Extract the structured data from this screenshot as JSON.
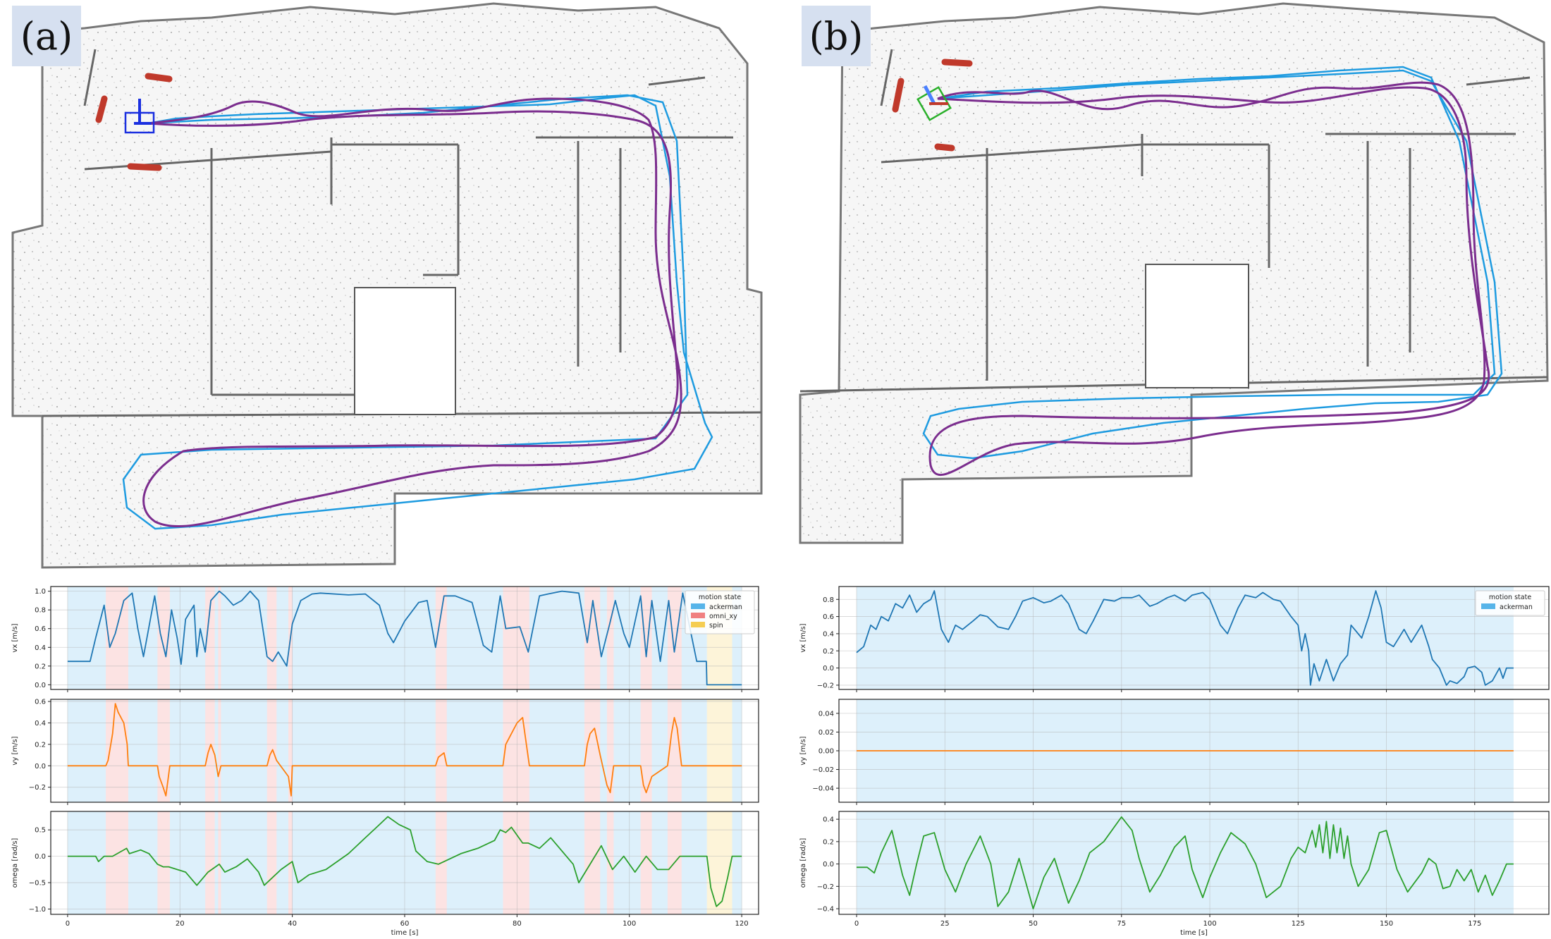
{
  "panels": [
    {
      "label": "(a)",
      "duration": 120,
      "xlim": [
        -3,
        123
      ],
      "xticks": [
        0,
        20,
        40,
        60,
        80,
        100,
        120
      ],
      "xlabel": "time [s]",
      "legend": {
        "title": "motion state",
        "entries": [
          {
            "name": "ackerman",
            "color": "#56b4e9"
          },
          {
            "name": "omni_xy",
            "color": "#f08080"
          },
          {
            "name": "spin",
            "color": "#f5cd52"
          }
        ]
      },
      "segments": [
        {
          "start": 0,
          "end": 6.8,
          "state": "ackerman"
        },
        {
          "start": 6.8,
          "end": 10.8,
          "state": "omni_xy"
        },
        {
          "start": 10.8,
          "end": 16.0,
          "state": "ackerman"
        },
        {
          "start": 16.0,
          "end": 18.2,
          "state": "omni_xy"
        },
        {
          "start": 18.2,
          "end": 24.5,
          "state": "ackerman"
        },
        {
          "start": 24.5,
          "end": 26.2,
          "state": "omni_xy"
        },
        {
          "start": 26.2,
          "end": 26.8,
          "state": "ackerman"
        },
        {
          "start": 26.8,
          "end": 27.3,
          "state": "omni_xy"
        },
        {
          "start": 27.3,
          "end": 35.5,
          "state": "ackerman"
        },
        {
          "start": 35.5,
          "end": 37.2,
          "state": "omni_xy"
        },
        {
          "start": 37.2,
          "end": 39.3,
          "state": "ackerman"
        },
        {
          "start": 39.3,
          "end": 40.0,
          "state": "omni_xy"
        },
        {
          "start": 40.0,
          "end": 65.5,
          "state": "ackerman"
        },
        {
          "start": 65.5,
          "end": 67.5,
          "state": "omni_xy"
        },
        {
          "start": 67.5,
          "end": 77.5,
          "state": "ackerman"
        },
        {
          "start": 77.5,
          "end": 82.2,
          "state": "omni_xy"
        },
        {
          "start": 82.2,
          "end": 92.0,
          "state": "ackerman"
        },
        {
          "start": 92.0,
          "end": 94.8,
          "state": "omni_xy"
        },
        {
          "start": 94.8,
          "end": 96.0,
          "state": "ackerman"
        },
        {
          "start": 96.0,
          "end": 97.2,
          "state": "omni_xy"
        },
        {
          "start": 97.2,
          "end": 102.0,
          "state": "ackerman"
        },
        {
          "start": 102.0,
          "end": 104.0,
          "state": "omni_xy"
        },
        {
          "start": 104.0,
          "end": 106.8,
          "state": "ackerman"
        },
        {
          "start": 106.8,
          "end": 109.3,
          "state": "omni_xy"
        },
        {
          "start": 109.3,
          "end": 113.8,
          "state": "ackerman"
        },
        {
          "start": 113.8,
          "end": 118.3,
          "state": "spin"
        },
        {
          "start": 118.3,
          "end": 120.0,
          "state": "ackerman"
        }
      ],
      "subplots": [
        {
          "ylabel": "vx [m/s]",
          "color": "#1f77b4",
          "ylim": [
            -0.05,
            1.05
          ],
          "yticks": [
            0.0,
            0.2,
            0.4,
            0.6,
            0.8,
            1.0
          ],
          "ytick_labels": [
            "0.0",
            "0.2",
            "0.4",
            "0.6",
            "0.8",
            "1.0"
          ],
          "t": [
            0,
            4,
            5,
            6.5,
            7.5,
            8.5,
            10,
            11.5,
            12.5,
            13.5,
            15.5,
            16.5,
            17.5,
            18.5,
            19.5,
            20.2,
            21,
            22.5,
            23,
            23.6,
            24.5,
            25.5,
            27,
            28,
            29.5,
            31,
            32.5,
            34,
            35.5,
            36.5,
            37.5,
            39,
            40,
            41.5,
            43.5,
            45,
            50,
            53,
            55.5,
            57,
            58,
            60,
            62.5,
            64,
            65.5,
            67,
            69,
            72,
            74,
            75.5,
            77,
            78,
            80.5,
            82,
            84,
            85.5,
            88,
            91,
            92.5,
            93.5,
            95,
            96.5,
            97.5,
            99,
            100,
            102,
            103,
            104,
            105.5,
            107,
            108,
            109.5,
            112,
            113.7,
            113.8,
            120
          ],
          "v": [
            0.25,
            0.25,
            0.5,
            0.85,
            0.4,
            0.55,
            0.9,
            0.98,
            0.6,
            0.3,
            0.95,
            0.55,
            0.3,
            0.8,
            0.5,
            0.22,
            0.7,
            0.85,
            0.3,
            0.6,
            0.35,
            0.9,
            1.0,
            0.95,
            0.85,
            0.9,
            1.0,
            0.9,
            0.3,
            0.25,
            0.35,
            0.2,
            0.65,
            0.9,
            0.97,
            0.98,
            0.96,
            0.97,
            0.85,
            0.55,
            0.45,
            0.68,
            0.88,
            0.9,
            0.4,
            0.95,
            0.95,
            0.88,
            0.42,
            0.35,
            0.95,
            0.6,
            0.62,
            0.35,
            0.95,
            0.97,
            1.0,
            0.98,
            0.45,
            0.9,
            0.3,
            0.65,
            0.9,
            0.55,
            0.4,
            0.95,
            0.3,
            0.9,
            0.25,
            0.9,
            0.35,
            0.98,
            0.25,
            0.25,
            0.0,
            0.0
          ]
        },
        {
          "ylabel": "vy [m/s]",
          "color": "#ff7f0e",
          "ylim": [
            -0.34,
            0.62
          ],
          "yticks": [
            -0.2,
            0.0,
            0.2,
            0.4,
            0.6
          ],
          "ytick_labels": [
            "−0.2",
            "0.0",
            "0.2",
            "0.4",
            "0.6"
          ],
          "t": [
            0,
            6.8,
            7.2,
            8,
            8.5,
            9,
            10,
            10.6,
            10.8,
            16.0,
            16.3,
            17,
            17.5,
            18.2,
            24.5,
            25,
            25.5,
            26.2,
            26.8,
            27.3,
            35.5,
            36,
            36.5,
            37.2,
            39.3,
            39.8,
            40.0,
            65.5,
            66,
            67,
            67.5,
            77.5,
            78,
            79,
            80,
            81,
            82.2,
            92.0,
            92.5,
            93,
            93.8,
            94.8,
            96,
            96.6,
            97.2,
            102.0,
            102.5,
            103,
            104,
            106.8,
            107.5,
            108,
            108.5,
            109.3,
            120
          ],
          "v": [
            0,
            0,
            0.05,
            0.3,
            0.58,
            0.5,
            0.4,
            0.2,
            0,
            0,
            -0.1,
            -0.2,
            -0.28,
            0,
            0,
            0.12,
            0.2,
            0.1,
            -0.1,
            0,
            0,
            0.1,
            0.15,
            0.05,
            -0.1,
            -0.28,
            0,
            0,
            0.08,
            0.12,
            0,
            0,
            0.2,
            0.3,
            0.4,
            0.45,
            0,
            0,
            0.2,
            0.3,
            0.35,
            0.1,
            -0.18,
            -0.25,
            0,
            0,
            -0.18,
            -0.25,
            -0.1,
            0,
            0.3,
            0.45,
            0.35,
            0,
            0
          ]
        },
        {
          "ylabel": "omega [rad/s]",
          "color": "#2ca02c",
          "ylim": [
            -1.1,
            0.85
          ],
          "yticks": [
            -1.0,
            -0.5,
            0.0,
            0.5
          ],
          "ytick_labels": [
            "−1.0",
            "−0.5",
            "0.0",
            "0.5"
          ],
          "t": [
            0,
            5,
            5.5,
            6.5,
            7,
            8,
            10.5,
            11,
            13,
            14.5,
            16,
            17,
            18,
            21,
            23,
            25,
            27,
            28,
            30,
            32,
            34,
            35,
            38,
            40,
            41,
            43,
            46,
            50,
            53,
            55,
            57,
            59,
            61,
            62,
            64,
            66,
            70,
            73,
            76,
            77,
            78,
            79,
            81,
            82,
            84,
            86,
            88,
            90,
            91,
            93,
            95,
            97,
            99,
            101,
            103,
            105,
            107,
            109,
            110,
            111,
            113,
            113.8,
            114.5,
            115.5,
            116.5,
            117.5,
            118.3,
            120
          ],
          "v": [
            0,
            0,
            -0.1,
            0,
            0,
            0,
            0.15,
            0.05,
            0.12,
            0.05,
            -0.15,
            -0.2,
            -0.2,
            -0.3,
            -0.55,
            -0.3,
            -0.15,
            -0.3,
            -0.2,
            -0.05,
            -0.3,
            -0.55,
            -0.25,
            -0.1,
            -0.5,
            -0.35,
            -0.25,
            0.05,
            0.35,
            0.55,
            0.75,
            0.6,
            0.5,
            0.1,
            -0.1,
            -0.15,
            0.05,
            0.15,
            0.3,
            0.5,
            0.45,
            0.55,
            0.25,
            0.25,
            0.15,
            0.35,
            0.1,
            -0.15,
            -0.5,
            -0.15,
            0.2,
            -0.25,
            0.0,
            -0.3,
            0.0,
            -0.25,
            -0.25,
            0.0,
            0.0,
            0.0,
            0.0,
            0.0,
            -0.6,
            -0.95,
            -0.85,
            -0.4,
            0.0,
            0.0
          ]
        }
      ]
    },
    {
      "label": "(b)",
      "duration": 186,
      "xlim": [
        -5,
        196
      ],
      "xticks": [
        0,
        25,
        50,
        75,
        100,
        125,
        150,
        175
      ],
      "xlabel": "time [s]",
      "legend": {
        "title": "motion state",
        "entries": [
          {
            "name": "ackerman",
            "color": "#56b4e9"
          }
        ]
      },
      "segments": [
        {
          "start": 0,
          "end": 186,
          "state": "ackerman"
        }
      ],
      "subplots": [
        {
          "ylabel": "vx [m/s]",
          "color": "#1f77b4",
          "ylim": [
            -0.25,
            0.95
          ],
          "yticks": [
            -0.2,
            0.0,
            0.2,
            0.4,
            0.6,
            0.8
          ],
          "ytick_labels": [
            "−0.2",
            "0.0",
            "0.2",
            "0.4",
            "0.6",
            "0.8"
          ],
          "t": [
            0,
            2,
            4,
            5.5,
            7,
            9,
            11,
            13,
            15,
            17,
            19,
            21,
            22,
            24,
            26,
            28,
            30,
            33,
            35,
            37,
            40,
            43,
            45,
            47,
            50,
            53,
            55,
            58,
            60,
            63,
            65,
            67,
            70,
            73,
            75,
            78,
            80,
            83,
            85,
            88,
            90,
            93,
            95,
            98,
            100,
            103,
            105,
            108,
            110,
            113,
            115,
            118,
            120,
            123,
            125,
            126,
            127,
            128,
            128.5,
            129.5,
            131,
            133,
            135,
            137,
            139,
            140,
            143,
            145,
            147,
            148.5,
            150,
            152,
            155,
            157,
            160,
            162,
            163,
            165,
            167,
            168,
            170,
            172,
            173,
            175,
            177,
            178,
            180,
            182,
            183,
            184,
            186
          ],
          "v": [
            0.18,
            0.25,
            0.5,
            0.45,
            0.6,
            0.55,
            0.75,
            0.7,
            0.85,
            0.65,
            0.75,
            0.8,
            0.9,
            0.45,
            0.3,
            0.5,
            0.45,
            0.55,
            0.62,
            0.6,
            0.48,
            0.45,
            0.6,
            0.78,
            0.82,
            0.76,
            0.78,
            0.85,
            0.75,
            0.45,
            0.4,
            0.55,
            0.8,
            0.78,
            0.82,
            0.82,
            0.85,
            0.72,
            0.75,
            0.82,
            0.85,
            0.78,
            0.85,
            0.88,
            0.8,
            0.5,
            0.4,
            0.7,
            0.85,
            0.82,
            0.88,
            0.8,
            0.78,
            0.6,
            0.5,
            0.2,
            0.4,
            0.2,
            -0.2,
            0.05,
            -0.15,
            0.1,
            -0.15,
            0.05,
            0.15,
            0.5,
            0.35,
            0.6,
            0.9,
            0.7,
            0.3,
            0.25,
            0.45,
            0.3,
            0.5,
            0.25,
            0.1,
            0.0,
            -0.2,
            -0.15,
            -0.18,
            -0.1,
            0.0,
            0.02,
            -0.05,
            -0.2,
            -0.15,
            0.0,
            -0.12,
            0.0,
            0.0
          ]
        },
        {
          "ylabel": "vy [m/s]",
          "color": "#ff7f0e",
          "ylim": [
            -0.055,
            0.055
          ],
          "yticks": [
            -0.04,
            -0.02,
            0.0,
            0.02,
            0.04
          ],
          "ytick_labels": [
            "−0.04",
            "−0.02",
            "0.00",
            "0.02",
            "0.04"
          ],
          "t": [
            0,
            186
          ],
          "v": [
            0,
            0
          ]
        },
        {
          "ylabel": "omega [rad/s]",
          "color": "#2ca02c",
          "ylim": [
            -0.45,
            0.47
          ],
          "yticks": [
            -0.4,
            -0.2,
            0.0,
            0.2,
            0.4
          ],
          "ytick_labels": [
            "−0.4",
            "−0.2",
            "0.0",
            "0.2",
            "0.4"
          ],
          "t": [
            0,
            3,
            5,
            7,
            10,
            13,
            15,
            17,
            19,
            22,
            25,
            28,
            31,
            35,
            38,
            40,
            43,
            46,
            50,
            53,
            56,
            60,
            63,
            66,
            70,
            75,
            78,
            80,
            83,
            86,
            90,
            93,
            95,
            98,
            100,
            103,
            106,
            110,
            113,
            116,
            120,
            123,
            125,
            127,
            129,
            130,
            131,
            132,
            133,
            134,
            135,
            136,
            137,
            138,
            139,
            140,
            142,
            145,
            148,
            150,
            153,
            156,
            160,
            162,
            164,
            166,
            168,
            170,
            172,
            174,
            176,
            178,
            180,
            182,
            184,
            186
          ],
          "v": [
            -0.03,
            -0.03,
            -0.08,
            0.1,
            0.3,
            -0.1,
            -0.28,
            0.0,
            0.25,
            0.28,
            -0.05,
            -0.25,
            0.0,
            0.25,
            0.0,
            -0.38,
            -0.25,
            0.05,
            -0.4,
            -0.12,
            0.05,
            -0.35,
            -0.15,
            0.1,
            0.2,
            0.42,
            0.3,
            0.05,
            -0.25,
            -0.1,
            0.15,
            0.25,
            -0.05,
            -0.3,
            -0.12,
            0.1,
            0.28,
            0.18,
            0.0,
            -0.3,
            -0.2,
            0.05,
            0.15,
            0.1,
            0.3,
            0.15,
            0.35,
            0.1,
            0.38,
            0.05,
            0.35,
            0.1,
            0.32,
            0.05,
            0.25,
            0.0,
            -0.2,
            -0.05,
            0.28,
            0.3,
            -0.05,
            -0.25,
            -0.08,
            0.05,
            0.0,
            -0.22,
            -0.2,
            -0.05,
            -0.15,
            -0.05,
            -0.25,
            -0.1,
            -0.28,
            -0.15,
            0.0,
            0.0
          ]
        }
      ]
    }
  ]
}
